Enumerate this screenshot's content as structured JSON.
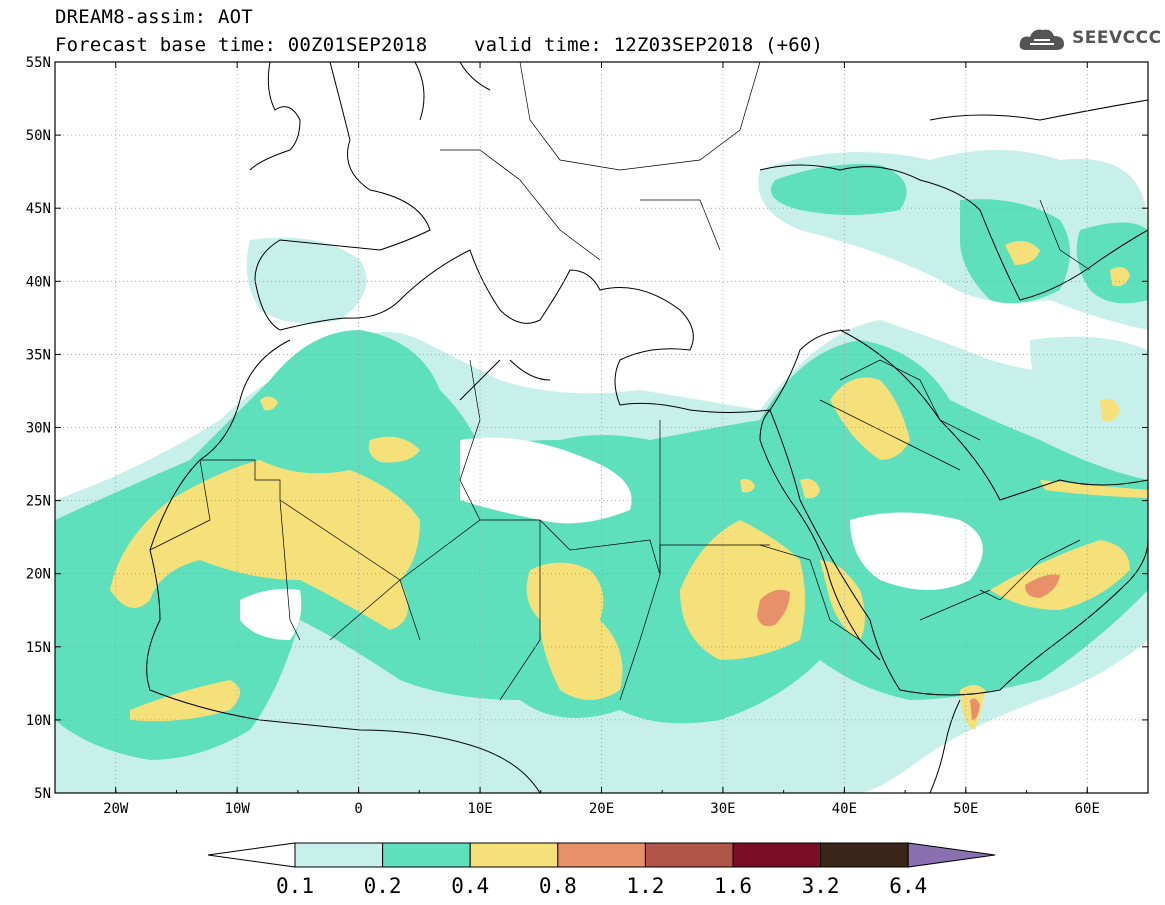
{
  "title": {
    "line1": "DREAM8-assim: AOT",
    "line2": "Forecast base time: 00Z01SEP2018    valid time: 12Z03SEP2018 (+60)"
  },
  "logo": {
    "text": "SEEVCCC",
    "icon": "cloud-icon"
  },
  "map": {
    "lon_range": [
      -25,
      65
    ],
    "lat_range": [
      5,
      55
    ],
    "lon_ticks": [
      {
        "value": -20,
        "label": "20W"
      },
      {
        "value": -10,
        "label": "10W"
      },
      {
        "value": 0,
        "label": "0"
      },
      {
        "value": 10,
        "label": "10E"
      },
      {
        "value": 20,
        "label": "20E"
      },
      {
        "value": 30,
        "label": "30E"
      },
      {
        "value": 40,
        "label": "40E"
      },
      {
        "value": 50,
        "label": "50E"
      },
      {
        "value": 60,
        "label": "60E"
      }
    ],
    "lat_ticks": [
      {
        "value": 55,
        "label": "55N"
      },
      {
        "value": 50,
        "label": "50N"
      },
      {
        "value": 45,
        "label": "45N"
      },
      {
        "value": 40,
        "label": "40N"
      },
      {
        "value": 35,
        "label": "35N"
      },
      {
        "value": 30,
        "label": "30N"
      },
      {
        "value": 25,
        "label": "25N"
      },
      {
        "value": 20,
        "label": "20N"
      },
      {
        "value": 15,
        "label": "15N"
      },
      {
        "value": 10,
        "label": "10N"
      },
      {
        "value": 5,
        "label": "5N"
      }
    ],
    "grid": "dotted",
    "colors": {
      "c01": "#c7f0ea",
      "c02": "#5ee0bc",
      "c04": "#f5e07a",
      "c08": "#e8906a",
      "c12": "#b05548",
      "c16": "#7a0e26",
      "c32": "#3b2418",
      "c64": "#8a70b0"
    }
  },
  "colorbar": {
    "labels": [
      "0.1",
      "0.2",
      "0.4",
      "0.8",
      "1.2",
      "1.6",
      "3.2",
      "6.4"
    ],
    "colors": [
      "#c7f0ea",
      "#5ee0bc",
      "#f5e07a",
      "#e8906a",
      "#b05548",
      "#7a0e26",
      "#3b2418"
    ],
    "low_color": "#ffffff",
    "high_color": "#8a70b0"
  }
}
